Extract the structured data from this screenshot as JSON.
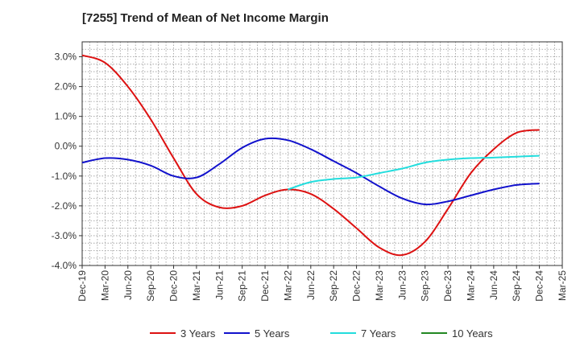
{
  "chart_data": {
    "type": "line",
    "title": "[7255]  Trend of Mean of Net Income Margin",
    "xlabel": "",
    "ylabel": "",
    "x": [
      "Dec-19",
      "Mar-20",
      "Jun-20",
      "Sep-20",
      "Dec-20",
      "Mar-21",
      "Jun-21",
      "Sep-21",
      "Dec-21",
      "Mar-22",
      "Jun-22",
      "Sep-22",
      "Dec-22",
      "Mar-23",
      "Jun-23",
      "Sep-23",
      "Dec-23",
      "Mar-24",
      "Jun-24",
      "Sep-24",
      "Dec-24",
      "Mar-25"
    ],
    "ylim": [
      -4.0,
      3.5
    ],
    "yticks": [
      3.0,
      2.0,
      1.0,
      0.0,
      -1.0,
      -2.0,
      -3.0,
      -4.0
    ],
    "ytick_labels": [
      "3.0%",
      "2.0%",
      "1.0%",
      "0.0%",
      "-1.0%",
      "-2.0%",
      "-3.0%",
      "-4.0%"
    ],
    "grid": true,
    "legend_position": "bottom",
    "series": [
      {
        "name": "3 Years",
        "color": "#dd1111",
        "values": [
          3.05,
          2.8,
          2.0,
          0.9,
          -0.4,
          -1.6,
          -2.05,
          -2.0,
          -1.65,
          -1.45,
          -1.6,
          -2.1,
          -2.75,
          -3.4,
          -3.65,
          -3.2,
          -2.1,
          -0.9,
          -0.1,
          0.45,
          0.55,
          null
        ]
      },
      {
        "name": "5 Years",
        "color": "#1111cc",
        "values": [
          -0.55,
          -0.4,
          -0.45,
          -0.65,
          -1.0,
          -1.05,
          -0.6,
          -0.05,
          0.25,
          0.2,
          -0.1,
          -0.5,
          -0.9,
          -1.35,
          -1.75,
          -1.95,
          -1.85,
          -1.65,
          -1.45,
          -1.3,
          -1.25,
          null
        ]
      },
      {
        "name": "7 Years",
        "color": "#22dddd",
        "values": [
          null,
          null,
          null,
          null,
          null,
          null,
          null,
          null,
          null,
          -1.45,
          -1.2,
          -1.1,
          -1.05,
          -0.9,
          -0.75,
          -0.55,
          -0.45,
          -0.4,
          -0.38,
          -0.35,
          -0.32,
          null
        ]
      },
      {
        "name": "10 Years",
        "color": "#228822",
        "values": [
          null,
          null,
          null,
          null,
          null,
          null,
          null,
          null,
          null,
          null,
          null,
          null,
          null,
          null,
          null,
          null,
          null,
          null,
          null,
          null,
          null,
          null
        ]
      }
    ]
  }
}
